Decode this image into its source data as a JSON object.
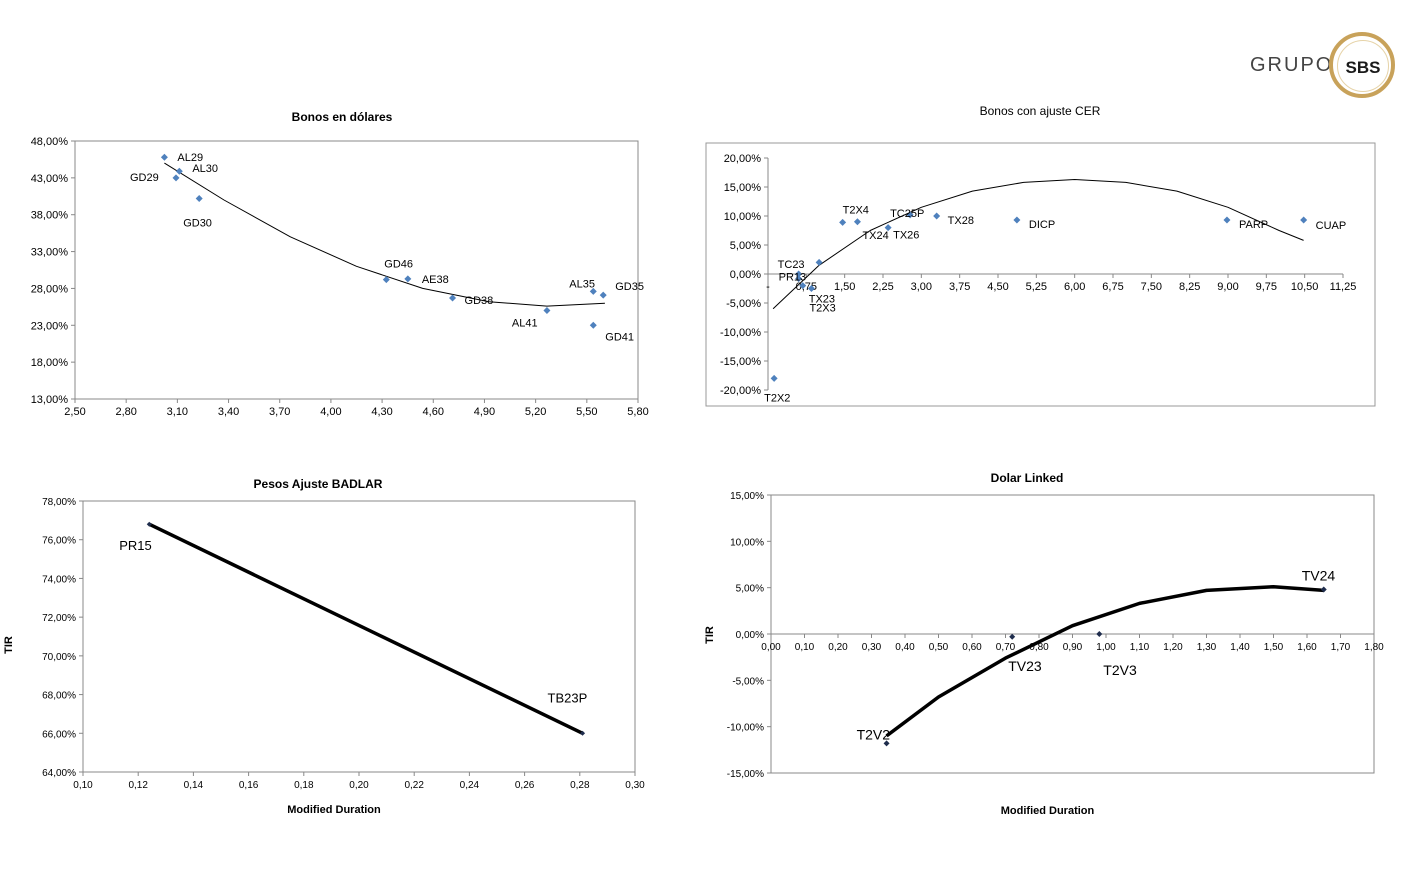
{
  "logo": {
    "word": "GRUPO",
    "mark": "SBS"
  },
  "chart_data": [
    {
      "id": "c1",
      "type": "scatter",
      "title": "Bonos  en dólares",
      "xlabel": "",
      "ylabel": "",
      "xlim": [
        2.5,
        5.9
      ],
      "ylim": [
        13,
        48
      ],
      "x_ticks": [
        "2,50",
        "2,80",
        "3,10",
        "3,40",
        "3,70",
        "4,00",
        "4,30",
        "4,60",
        "4,90",
        "5,20",
        "5,50",
        "5,80"
      ],
      "y_ticks": [
        "48,00%",
        "43,00%",
        "38,00%",
        "33,00%",
        "28,00%",
        "23,00%",
        "18,00%",
        "13,00%"
      ],
      "marker_color": "#4f81bd",
      "points": [
        {
          "label": "AL29",
          "x": 3.04,
          "y": 45.8
        },
        {
          "label": "GD29",
          "x": 3.11,
          "y": 43.0
        },
        {
          "label": "AL30",
          "x": 3.13,
          "y": 43.9
        },
        {
          "label": "GD30",
          "x": 3.25,
          "y": 40.2
        },
        {
          "label": "GD46",
          "x": 4.38,
          "y": 29.2
        },
        {
          "label": "AE38",
          "x": 4.51,
          "y": 29.3
        },
        {
          "label": "GD38",
          "x": 4.78,
          "y": 26.7
        },
        {
          "label": "AL41",
          "x": 5.35,
          "y": 25.0
        },
        {
          "label": "AL35",
          "x": 5.63,
          "y": 27.6
        },
        {
          "label": "GD35",
          "x": 5.69,
          "y": 27.1
        },
        {
          "label": "GD41",
          "x": 5.63,
          "y": 23.0
        }
      ],
      "trend": {
        "x": [
          3.04,
          3.4,
          3.8,
          4.2,
          4.6,
          5.0,
          5.35,
          5.7
        ],
        "y": [
          45.0,
          40.0,
          35.0,
          31.0,
          28.0,
          26.2,
          25.6,
          26.0
        ]
      }
    },
    {
      "id": "c2",
      "type": "scatter",
      "title": "Bonos  con ajuste CER",
      "xlabel": "",
      "ylabel": "",
      "xlim": [
        0,
        11.25
      ],
      "ylim": [
        -20,
        20
      ],
      "x_ticks": [
        "-",
        "0,75",
        "1,50",
        "2,25",
        "3,00",
        "3,75",
        "4,50",
        "5,25",
        "6,00",
        "6,75",
        "7,50",
        "8,25",
        "9,00",
        "9,75",
        "10,50",
        "11,25"
      ],
      "y_ticks": [
        "20,00%",
        "15,00%",
        "10,00%",
        "5,00%",
        "0,00%",
        "-5,00%",
        "-10,00%",
        "-15,00%",
        "-20,00%"
      ],
      "marker_color": "#4f81bd",
      "points": [
        {
          "label": "T2X2",
          "x": 0.12,
          "y": -18.0
        },
        {
          "label": "TC23",
          "x": 0.6,
          "y": 0.0
        },
        {
          "label": "PR13",
          "x": 0.6,
          "y": -0.8
        },
        {
          "label": "TX23",
          "x": 0.68,
          "y": -2.0
        },
        {
          "label": "T2X3",
          "x": 0.85,
          "y": -2.5
        },
        {
          "label": "",
          "x": 1.0,
          "y": 2.0
        },
        {
          "label": "T2X4",
          "x": 1.46,
          "y": 8.9
        },
        {
          "label": "TX24",
          "x": 1.75,
          "y": 9.0
        },
        {
          "label": "TX26",
          "x": 2.35,
          "y": 8.0
        },
        {
          "label": "TC25P",
          "x": 2.78,
          "y": 10.2
        },
        {
          "label": "TX28",
          "x": 3.3,
          "y": 10.0
        },
        {
          "label": "DICP",
          "x": 4.87,
          "y": 9.3
        },
        {
          "label": "PARP",
          "x": 8.98,
          "y": 9.3
        },
        {
          "label": "CUAP",
          "x": 10.48,
          "y": 9.3
        }
      ],
      "trend": {
        "x": [
          0.1,
          1,
          2,
          3,
          4,
          5,
          6,
          7,
          8,
          9,
          10,
          10.48
        ],
        "y": [
          -6,
          1.5,
          7.5,
          11.5,
          14.3,
          15.8,
          16.3,
          15.8,
          14.3,
          11.5,
          7.5,
          5.8
        ]
      }
    },
    {
      "id": "c3",
      "type": "line",
      "title": "Pesos  Ajuste  BADLAR",
      "xlabel": "Modified Duration",
      "ylabel": "TIR",
      "xlim": [
        0.1,
        0.3
      ],
      "ylim": [
        64,
        78
      ],
      "x_ticks": [
        "0,10",
        "0,12",
        "0,14",
        "0,16",
        "0,18",
        "0,20",
        "0,22",
        "0,24",
        "0,26",
        "0,28",
        "0,30"
      ],
      "y_ticks": [
        "78,00%",
        "76,00%",
        "74,00%",
        "72,00%",
        "70,00%",
        "68,00%",
        "66,00%",
        "64,00%"
      ],
      "points": [
        {
          "label": "PR15",
          "x": 0.124,
          "y": 76.8
        },
        {
          "label": "TB23P",
          "x": 0.281,
          "y": 66.0
        }
      ]
    },
    {
      "id": "c4",
      "type": "scatter",
      "title": "Dolar Linked",
      "xlabel": "Modified Duration",
      "ylabel": "TIR",
      "xlim": [
        0,
        1.8
      ],
      "ylim": [
        -15,
        15
      ],
      "x_ticks": [
        "0,00",
        "0,10",
        "0,20",
        "0,30",
        "0,40",
        "0,50",
        "0,60",
        "0,70",
        "0,80",
        "0,90",
        "1,00",
        "1,10",
        "1,20",
        "1,30",
        "1,40",
        "1,50",
        "1,60",
        "1,70",
        "1,80"
      ],
      "y_ticks": [
        "15,00%",
        "10,00%",
        "5,00%",
        "0,00%",
        "-5,00%",
        "-10,00%",
        "-15,00%"
      ],
      "points": [
        {
          "label": "T2V2",
          "x": 0.345,
          "y": -11.8
        },
        {
          "label": "TV23",
          "x": 0.72,
          "y": -0.3
        },
        {
          "label": "T2V3",
          "x": 0.98,
          "y": 0.0
        },
        {
          "label": "TV24",
          "x": 1.65,
          "y": 4.8
        }
      ],
      "trend": {
        "x": [
          0.345,
          0.5,
          0.7,
          0.9,
          1.1,
          1.3,
          1.5,
          1.65
        ],
        "y": [
          -11.0,
          -6.8,
          -2.6,
          0.9,
          3.3,
          4.7,
          5.1,
          4.7
        ]
      }
    }
  ]
}
